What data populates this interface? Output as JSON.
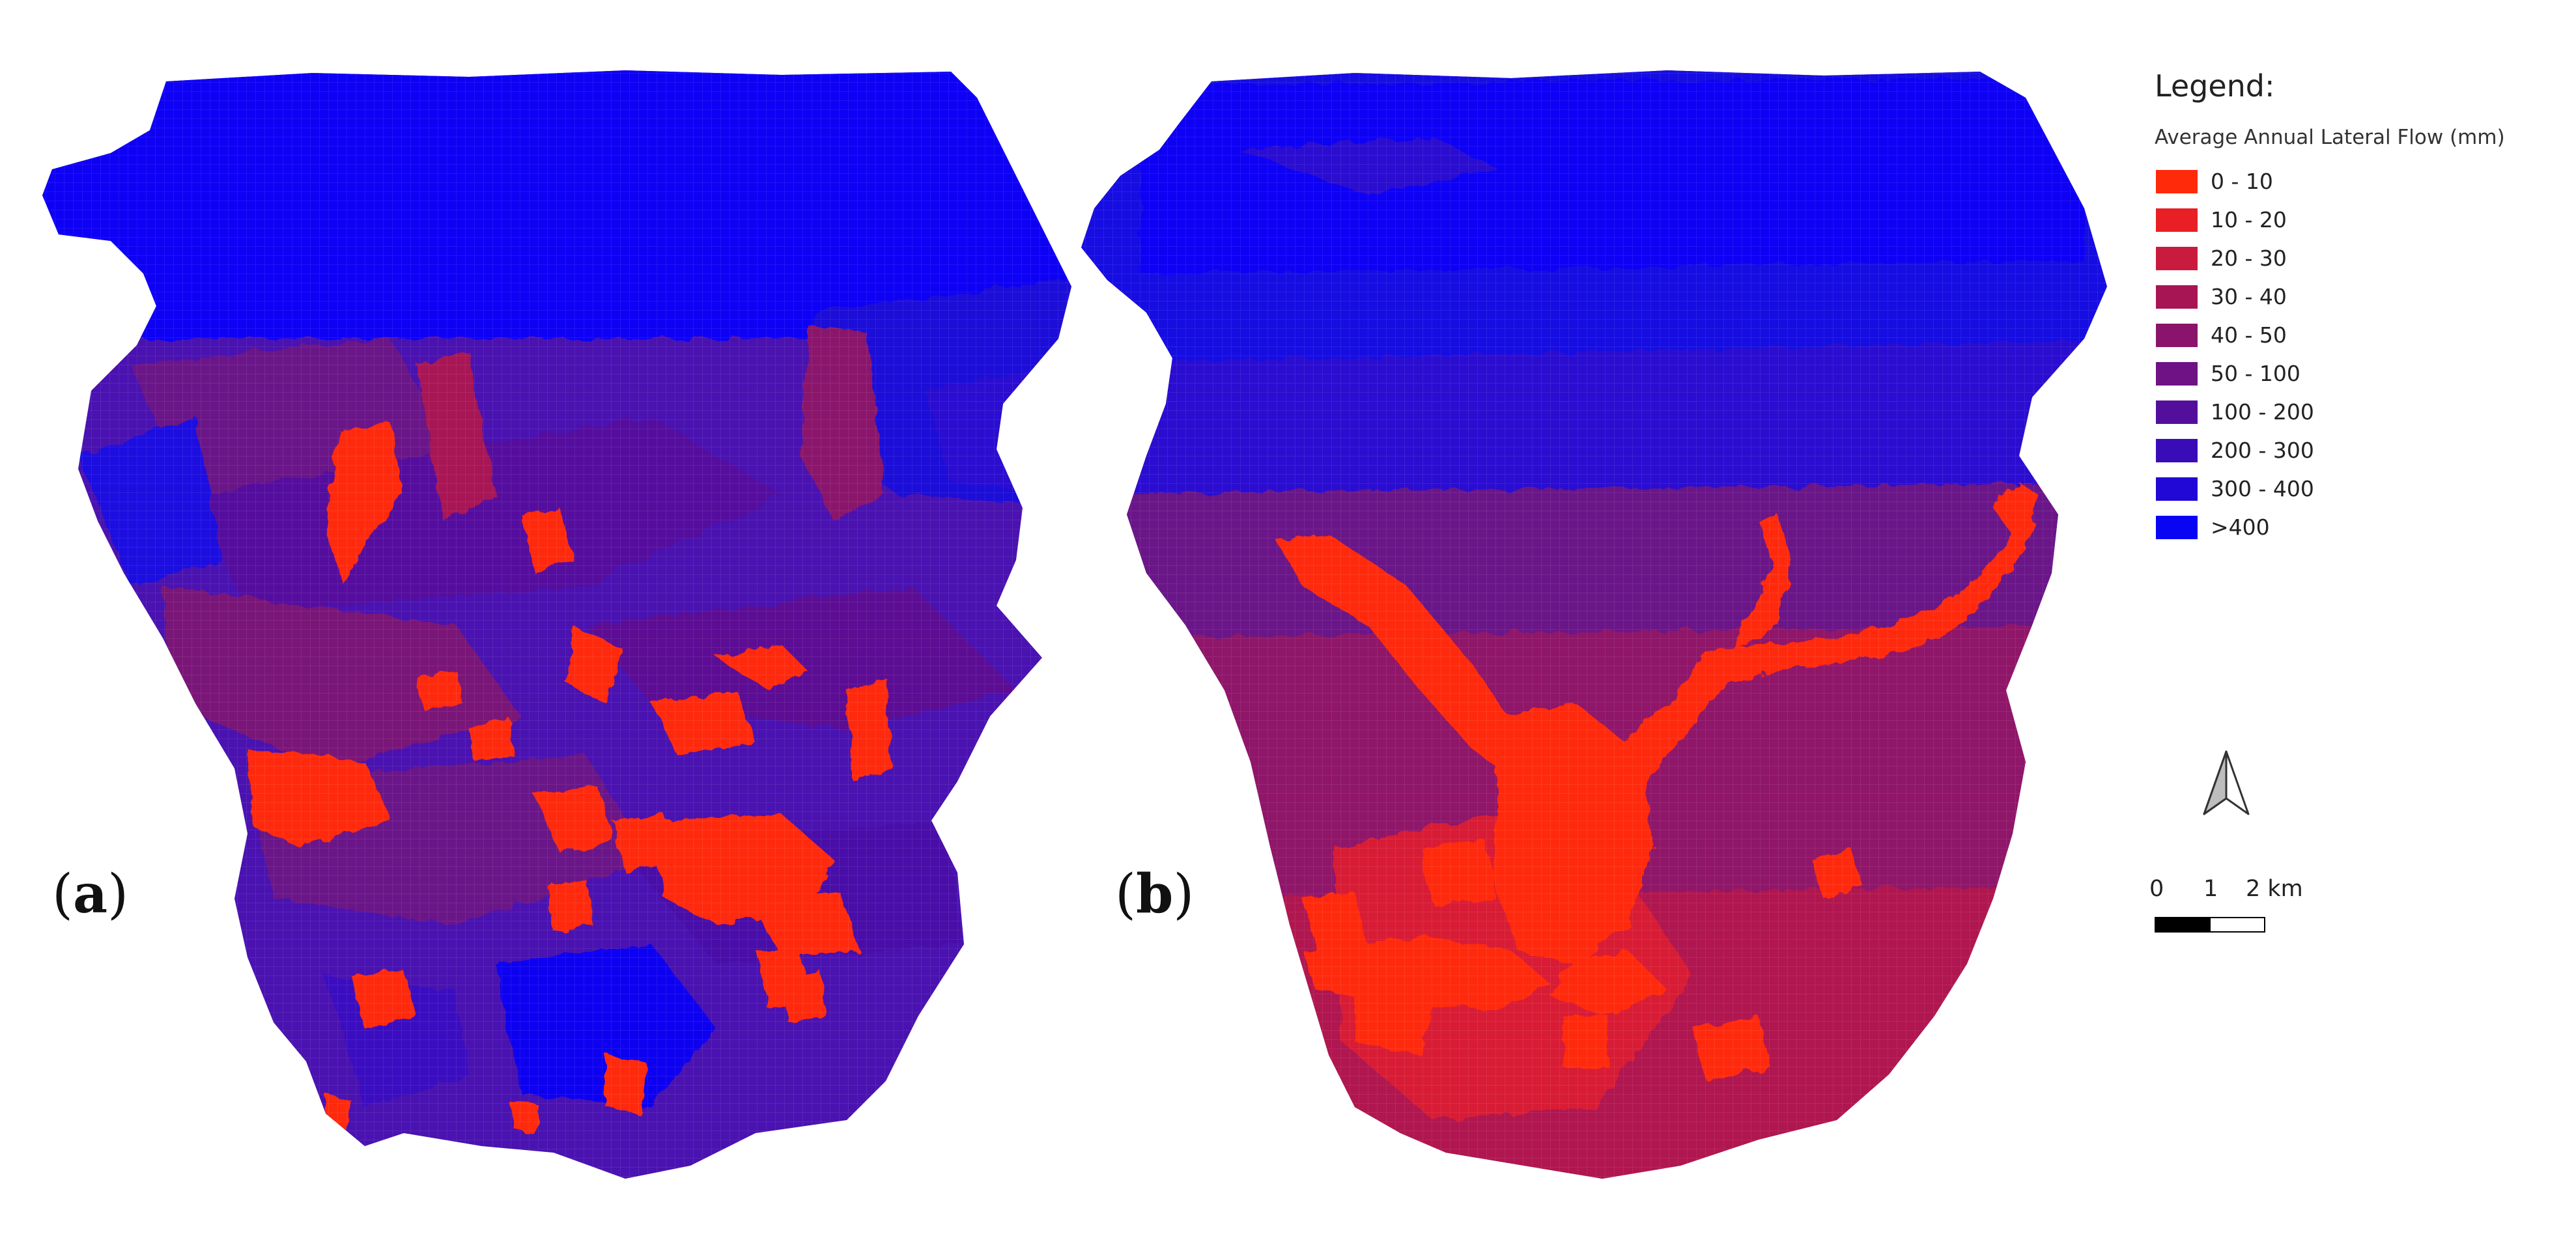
{
  "panels": [
    {
      "label_open": "(",
      "label_letter": "a",
      "label_close": ")"
    },
    {
      "label_open": "(",
      "label_letter": "b",
      "label_close": ")"
    }
  ],
  "legend": {
    "title": "Legend:",
    "subtitle": "Average Annual Lateral Flow (mm)",
    "items": [
      {
        "label": "0 - 10",
        "color": "#ff2a0a"
      },
      {
        "label": "10 - 20",
        "color": "#e81f24"
      },
      {
        "label": "20 - 30",
        "color": "#c91b3d"
      },
      {
        "label": "30 - 40",
        "color": "#a81555"
      },
      {
        "label": "40 - 50",
        "color": "#8a136c"
      },
      {
        "label": "50 - 100",
        "color": "#6e1285"
      },
      {
        "label": "100 - 200",
        "color": "#540e9c"
      },
      {
        "label": "200 - 300",
        "color": "#3a0cb8"
      },
      {
        "label": "300 - 400",
        "color": "#2108d6"
      },
      {
        "label": ">400",
        "color": "#0a04f5"
      }
    ]
  },
  "north_arrow": {
    "icon": "north-arrow-icon"
  },
  "scale_bar": {
    "labels": [
      "0",
      "1",
      "2 km"
    ]
  }
}
